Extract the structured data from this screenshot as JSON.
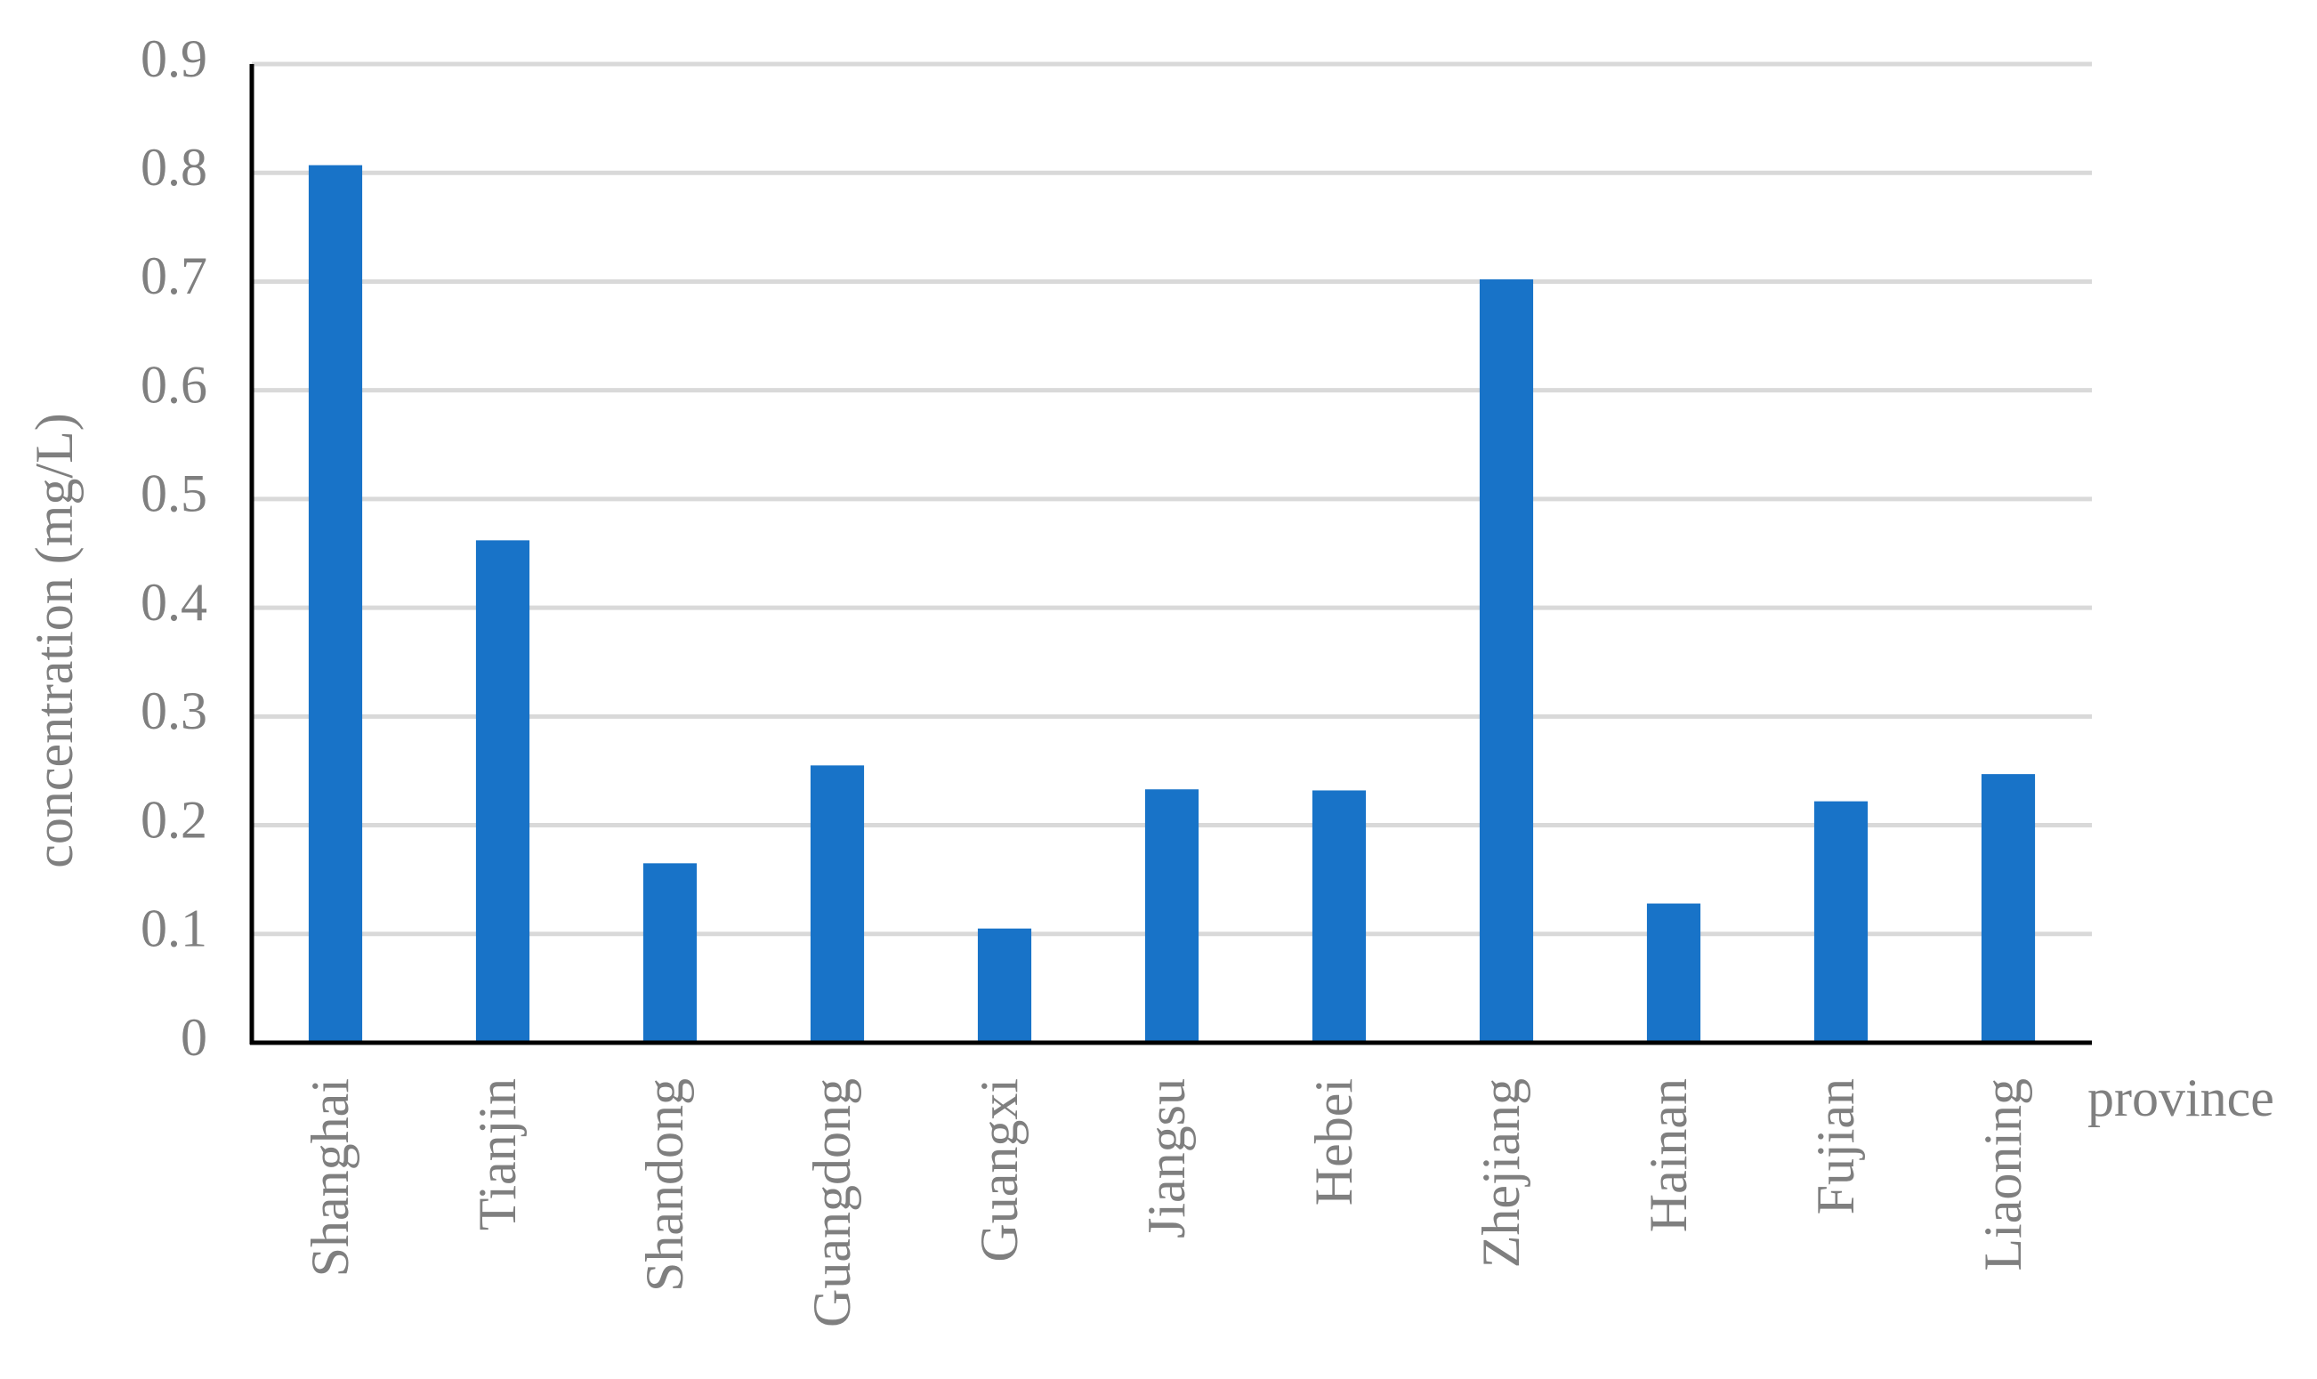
{
  "chart_data": {
    "type": "bar",
    "y_label": "concentration (mg/L)",
    "x_label": "province",
    "categories": [
      "Shanghai",
      "Tianjin",
      "Shandong",
      "Guangdong",
      "Guangxi",
      "Jiangsu",
      "Hebei",
      "Zhejiang",
      "Hainan",
      "Fujian",
      "Liaoning"
    ],
    "values": [
      0.807,
      0.462,
      0.165,
      0.255,
      0.105,
      0.233,
      0.232,
      0.702,
      0.128,
      0.222,
      0.247
    ],
    "color": "#1873c8",
    "ylim": [
      0,
      0.9
    ],
    "yticks": [
      0,
      0.1,
      0.2,
      0.3,
      0.4,
      0.5,
      0.6,
      0.7,
      0.8,
      0.9
    ],
    "grid": true
  }
}
